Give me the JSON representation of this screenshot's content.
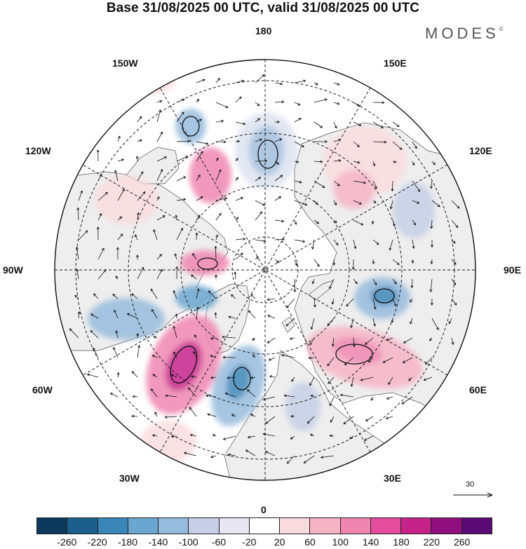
{
  "header": {
    "title": "Base 31/08/2025 00 UTC, valid 31/08/2025 00 UTC",
    "brand": "MODES",
    "brand_mark": "©"
  },
  "map": {
    "projection": "north-polar-stereographic",
    "meridian_labels": {
      "deg180": "180",
      "deg150E": "150E",
      "deg120E": "120E",
      "deg90E": "90E",
      "deg60E": "60E",
      "deg30E": "30E",
      "deg0": "0",
      "deg30W": "30W",
      "deg60W": "60W",
      "deg90W": "90W",
      "deg120W": "120W",
      "deg150W": "150W"
    },
    "land_color": "#eeeeee",
    "ocean_color": "#ffffff",
    "vector_reference": {
      "label": "30"
    }
  },
  "colorbar": {
    "colors": [
      "#0d3a5c",
      "#1b5f8c",
      "#3a86b8",
      "#6aa6cf",
      "#97bbdd",
      "#c6cfe6",
      "#e8e6f2",
      "#ffffff",
      "#fadcde",
      "#f6b4c6",
      "#ef86b0",
      "#e54d9d",
      "#c6238a",
      "#8f0f7f",
      "#5a0a73"
    ],
    "tick_labels": [
      "-260",
      "-220",
      "-180",
      "-140",
      "-100",
      "-60",
      "-20",
      "20",
      "60",
      "100",
      "140",
      "180",
      "220",
      "260"
    ]
  }
}
